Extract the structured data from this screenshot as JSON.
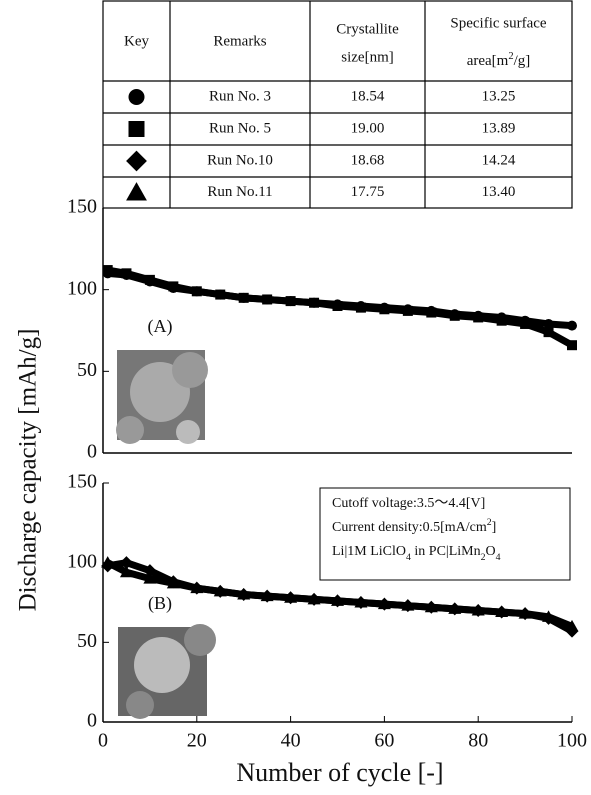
{
  "table": {
    "headers": [
      [
        "Key"
      ],
      [
        "Remarks"
      ],
      [
        "Crystallite",
        "size[nm]"
      ],
      [
        "Specific surface",
        "area[m",
        "2",
        "/g]"
      ]
    ],
    "rows": [
      [
        "Run No. 3",
        "18.54",
        "13.25"
      ],
      [
        "Run No. 5",
        "19.00",
        "13.89"
      ],
      [
        "Run No.10",
        "18.68",
        "14.24"
      ],
      [
        "Run No.11",
        "17.75",
        "13.40"
      ]
    ]
  },
  "figure": {
    "ylabel": "Discharge capacity [mAh/g]",
    "xlabel": "Number of cycle [-]"
  },
  "chart_data": [
    {
      "type": "scatter",
      "label": "(A)",
      "xlim": [
        0,
        100
      ],
      "ylim": [
        0,
        150
      ],
      "yticks": [
        0,
        50,
        100,
        150
      ],
      "x": [
        1,
        5,
        10,
        15,
        20,
        25,
        30,
        35,
        40,
        45,
        50,
        55,
        60,
        65,
        70,
        75,
        80,
        85,
        90,
        95,
        100
      ],
      "series": [
        {
          "marker": "circle",
          "color": "#000000",
          "values": [
            110,
            109,
            105,
            101,
            99,
            97,
            95,
            94,
            93,
            92,
            91,
            90,
            89,
            88,
            87,
            85,
            84,
            83,
            81,
            79,
            78
          ]
        },
        {
          "marker": "square",
          "color": "#000000",
          "values": [
            112,
            110,
            106,
            102,
            99,
            97,
            95,
            94,
            93,
            92,
            90,
            89,
            88,
            87,
            86,
            84,
            83,
            81,
            79,
            74,
            66
          ]
        }
      ]
    },
    {
      "type": "scatter",
      "label": "(B)",
      "xlim": [
        0,
        100
      ],
      "ylim": [
        0,
        150
      ],
      "yticks": [
        0,
        50,
        100,
        150
      ],
      "xticks": [
        0,
        20,
        40,
        60,
        80,
        100
      ],
      "x": [
        1,
        5,
        10,
        15,
        20,
        25,
        30,
        35,
        40,
        45,
        50,
        55,
        60,
        65,
        70,
        75,
        80,
        85,
        90,
        95,
        100
      ],
      "notes": [
        [
          "Cutoff voltage:3.5～4.4[V]"
        ],
        [
          "Current density:0.5[mA/cm",
          "2",
          "]"
        ],
        [
          "Li|1M LiClO",
          "4",
          " in PC|LiMn",
          "2",
          "O",
          "4"
        ]
      ],
      "series": [
        {
          "marker": "diamond",
          "color": "#000000",
          "values": [
            98,
            100,
            95,
            88,
            84,
            82,
            80,
            79,
            78,
            77,
            76,
            75,
            74,
            73,
            72,
            71,
            70,
            69,
            68,
            65,
            57
          ]
        },
        {
          "marker": "triangle",
          "color": "#000000",
          "values": [
            100,
            94,
            90,
            87,
            84,
            82,
            80,
            79,
            78,
            77,
            76,
            75,
            74,
            73,
            72,
            71,
            70,
            69,
            68,
            66,
            60
          ]
        }
      ]
    }
  ]
}
